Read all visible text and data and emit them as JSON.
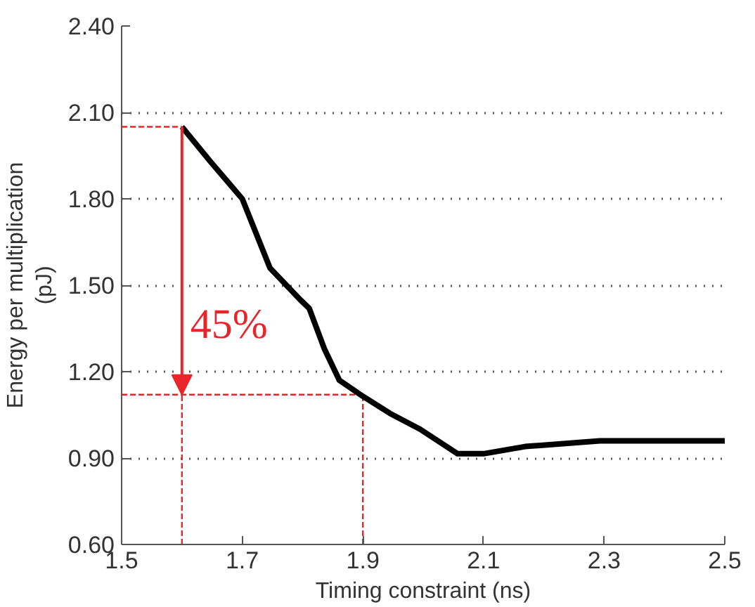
{
  "chart_data": {
    "type": "line",
    "xlabel": "Timing constraint (ns)",
    "ylabel": "Energy per multiplication\n(pJ)",
    "xlim": [
      1.5,
      2.5
    ],
    "xticks": [
      1.5,
      1.7,
      1.9,
      2.1,
      2.3,
      2.5
    ],
    "ylim": [
      0.6,
      2.4
    ],
    "yticks": [
      {
        "value": 0.6,
        "label": "0.60"
      },
      {
        "value": 0.9,
        "label": "0.90"
      },
      {
        "value": 1.2,
        "label": "1.20"
      },
      {
        "value": 1.5,
        "label": "1.50"
      },
      {
        "value": 1.8,
        "label": "1.80"
      },
      {
        "value": 2.1,
        "label": "2.10"
      },
      {
        "value": 2.4,
        "label": "2.40"
      }
    ],
    "grid": "y",
    "line_style": "solid",
    "marker": "none",
    "series": [
      {
        "color": "#000000",
        "x": [
          1.6,
          1.647,
          1.7,
          1.746,
          1.771,
          1.796,
          1.811,
          1.836,
          1.861,
          1.896,
          1.945,
          1.995,
          2.057,
          2.1,
          2.169,
          2.293,
          2.5
        ],
        "values": [
          2.05,
          1.93,
          1.8,
          1.56,
          1.505,
          1.45,
          1.42,
          1.28,
          1.17,
          1.12,
          1.055,
          1.0,
          0.915,
          0.915,
          0.94,
          0.96,
          0.96
        ]
      }
    ],
    "ref_lines": [
      {
        "axis": "y",
        "value": 2.05,
        "color": "#e8262a",
        "line_style": "dashed"
      },
      {
        "axis": "y",
        "value": 1.12,
        "color": "#e8262a",
        "line_style": "dashed"
      },
      {
        "axis": "x",
        "value": 1.6,
        "color": "#e8262a",
        "line_style": "dashed"
      },
      {
        "axis": "x",
        "value": 1.9,
        "color": "#e8262a",
        "line_style": "dashed"
      }
    ],
    "annotations": [
      "45%"
    ]
  }
}
